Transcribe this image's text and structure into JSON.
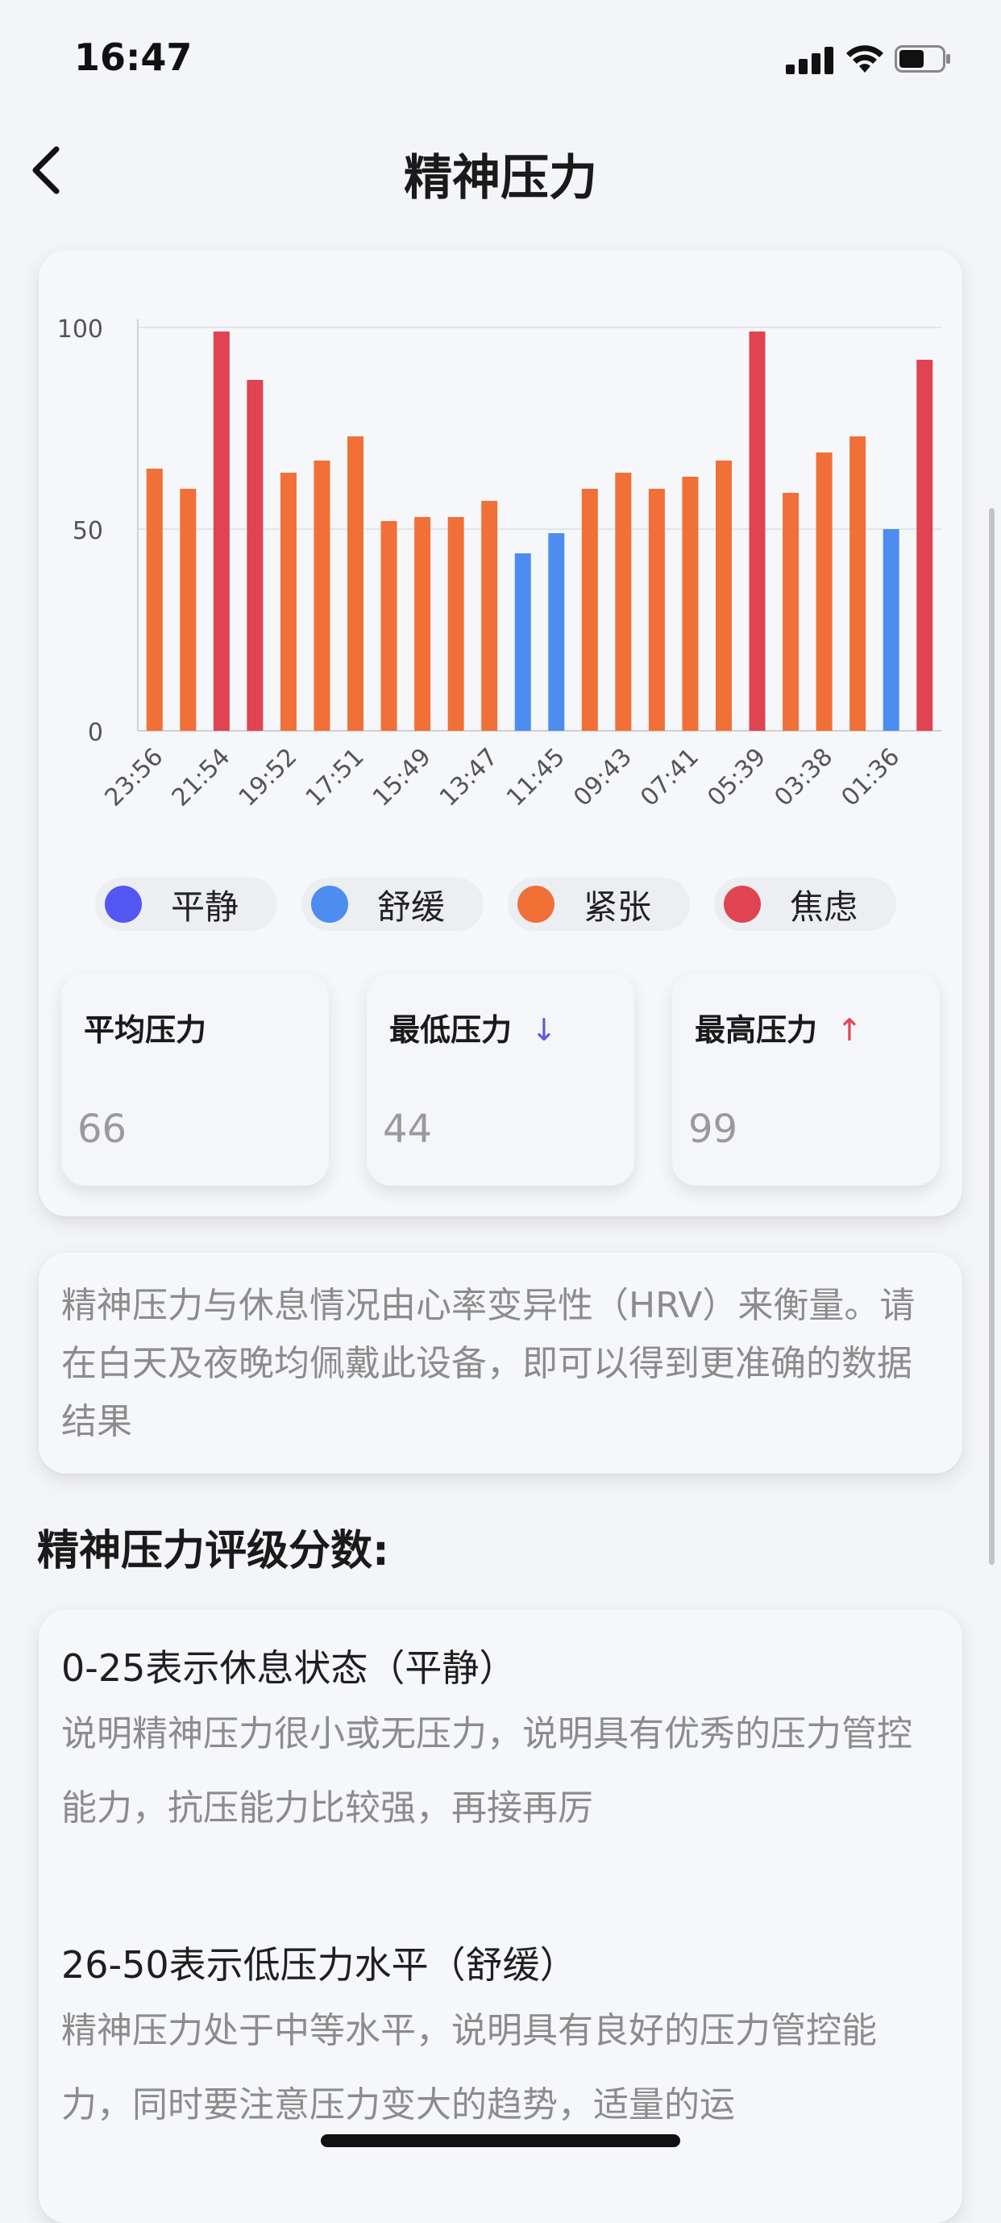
{
  "status_bar": {
    "time": "16:47"
  },
  "header": {
    "title": "精神压力"
  },
  "chart_data": {
    "type": "bar",
    "categories": [
      "23:56",
      "",
      "21:54",
      "",
      "19:52",
      "",
      "17:51",
      "",
      "15:49",
      "",
      "13:47",
      "",
      "11:45",
      "",
      "09:43",
      "",
      "07:41",
      "",
      "05:39",
      "",
      "03:38",
      "",
      "01:36",
      ""
    ],
    "tick_labels": [
      "23:56",
      "21:54",
      "19:52",
      "17:51",
      "15:49",
      "13:47",
      "11:45",
      "09:43",
      "07:41",
      "05:39",
      "03:38",
      "01:36"
    ],
    "values": [
      65,
      60,
      99,
      87,
      64,
      67,
      73,
      52,
      53,
      53,
      57,
      44,
      49,
      60,
      64,
      60,
      63,
      67,
      99,
      59,
      69,
      73,
      50,
      92
    ],
    "ylim": [
      0,
      100
    ],
    "yticks": [
      0,
      50,
      100
    ],
    "grid": true,
    "bar_colors": {
      "calm": "#5356f0",
      "relaxed": "#4d8df0",
      "tense": "#f07038",
      "anxious": "#e04452"
    }
  },
  "legend": [
    {
      "label": "平静",
      "color": "#5356f0"
    },
    {
      "label": "舒缓",
      "color": "#4d8df0"
    },
    {
      "label": "紧张",
      "color": "#f07038"
    },
    {
      "label": "焦虑",
      "color": "#e04452"
    }
  ],
  "stats": {
    "average": {
      "label": "平均压力",
      "value": "66"
    },
    "minimum": {
      "label": "最低压力",
      "value": "44",
      "arrow": "↓",
      "arrow_color": "#5a5ae0"
    },
    "maximum": {
      "label": "最高压力",
      "value": "99",
      "arrow": "↑",
      "arrow_color": "#e04452"
    }
  },
  "description": "精神压力与休息情况由心率变异性（HRV）来衡量。请在白天及夜晚均佩戴此设备，即可以得到更准确的数据结果",
  "rating_section": {
    "title": "精神压力评级分数:",
    "items": [
      {
        "heading": "0-25表示休息状态（平静）",
        "desc": "说明精神压力很小或无压力，说明具有优秀的压力管控能力，抗压能力比较强，再接再厉"
      },
      {
        "heading": "26-50表示低压力水平（舒缓）",
        "desc": "精神压力处于中等水平，说明具有良好的压力管控能力，同时要注意压力变大的趋势，适量的运"
      }
    ]
  }
}
